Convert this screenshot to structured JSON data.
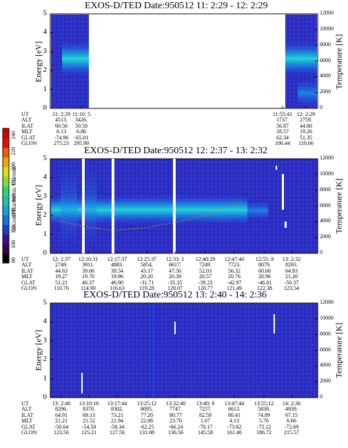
{
  "colorbar": {
    "label": "Second Harmonic Current",
    "ticks": [
      "240",
      "220",
      "200",
      "180",
      "160",
      "140",
      "120",
      "100",
      "80"
    ],
    "colors": [
      "#000000",
      "#3a004f",
      "#3b0d8a",
      "#1d3fd1",
      "#0a77e6",
      "#06a9d8",
      "#11c9a6",
      "#2fd86a",
      "#7ee12b",
      "#d7e016",
      "#f6a20e",
      "#f05a08",
      "#e10f05",
      "#d40000"
    ]
  },
  "chart_data": [
    {
      "type": "heatmap",
      "title": "EXOS-D/TED   Date:950512  11: 2:29 - 12: 2:29",
      "ylabel": "Energy [eV]",
      "y2label": "Temperature [K]",
      "ylim": [
        0,
        5
      ],
      "y2lim": [
        0,
        12000
      ],
      "yticks": [
        "0",
        "1",
        "2",
        "3",
        "4",
        "5"
      ],
      "y2ticks": [
        "0",
        "2000",
        "4000",
        "6000",
        "8000",
        "10000",
        "12000"
      ],
      "data_gap": [
        "11:10: 5",
        "11:55:41"
      ],
      "ephemeris": {
        "labels": [
          "UT",
          "ALT",
          "ILAT",
          "MLT",
          "GLAT",
          "GLON"
        ],
        "columns": [
          {
            "ut": "11: 2:29",
            "alt": "4513.",
            "ilat": "60.56",
            "mlt": "6.13",
            "glat": "-74.96",
            "glon": "275.23"
          },
          {
            "ut": "11:10: 5",
            "alt": "3426.",
            "ilat": "50.50",
            "mlt": "6.86",
            "glat": "-65.01",
            "glon": "295.99"
          },
          {
            "ut": "11:55:41",
            "alt": "1737.",
            "ilat": "56.87",
            "mlt": "18.57",
            "glat": "62.34",
            "glon": "100.44"
          },
          {
            "ut": "12: 2:29",
            "alt": "2759.",
            "ilat": "44.80",
            "mlt": "19.26",
            "glat": "51.35",
            "glon": "110.66"
          }
        ]
      }
    },
    {
      "type": "heatmap",
      "title": "EXOS-D/TED   Date:950512  12: 2:37 - 13: 2:32",
      "ylabel": "Energy [eV]",
      "y2label": "Temperature [K]",
      "ylim": [
        0,
        5
      ],
      "y2lim": [
        0,
        12000
      ],
      "yticks": [
        "0",
        "1",
        "2",
        "3",
        "4",
        "5"
      ],
      "y2ticks": [
        "0",
        "2000",
        "4000",
        "6000",
        "8000",
        "10000",
        "12000"
      ],
      "ephemeris": {
        "labels": [
          "UT",
          "ALT",
          "ILAT",
          "MLT",
          "GLAT",
          "GLON"
        ],
        "columns": [
          {
            "ut": "12: 2:37",
            "alt": "2749.",
            "ilat": "44.63",
            "mlt": "19.27",
            "glat": "51.21",
            "glon": "110.76"
          },
          {
            "ut": "12:10:31",
            "alt": "3911.",
            "ilat": "39.00",
            "mlt": "19.70",
            "glat": "46.37",
            "glon": "114.90"
          },
          {
            "ut": "12:17:37",
            "alt": "4883.",
            "ilat": "39.54",
            "mlt": "19.96",
            "glat": "46.90",
            "glon": "116.63"
          },
          {
            "ut": "12:25:37",
            "alt": "5854.",
            "ilat": "43.17",
            "mlt": "20.20",
            "glat": "-31.71",
            "glon": "119.28"
          },
          {
            "ut": "12:33: 1",
            "alt": "6617.",
            "ilat": "47.50",
            "mlt": "20.39",
            "glat": "-35.35",
            "glon": "120.07"
          },
          {
            "ut": "12:40:29",
            "alt": "7249.",
            "ilat": "52.03",
            "mlt": "20.57",
            "glat": "-39.23",
            "glon": "120.77"
          },
          {
            "ut": "12:47:40",
            "alt": "7723.",
            "ilat": "56.32",
            "mlt": "20.76",
            "glat": "-42.97",
            "glon": "121.49"
          },
          {
            "ut": "12:55: 8",
            "alt": "8079.",
            "ilat": "60.66",
            "mlt": "20.96",
            "glat": "-46.81",
            "glon": "122.38"
          },
          {
            "ut": "13: 2:32",
            "alt": "8293.",
            "ilat": "64.83",
            "mlt": "21.20",
            "glat": "-50.37",
            "glon": "123.54"
          }
        ]
      }
    },
    {
      "type": "heatmap",
      "title": "EXOS-D/TED   Date:950512  13: 2:40 - 14: 2:36",
      "ylabel": "Energy [eV]",
      "y2label": "Temperature [K]",
      "ylim": [
        0,
        5
      ],
      "y2lim": [
        0,
        12000
      ],
      "yticks": [
        "0",
        "1",
        "2",
        "3",
        "4",
        "5"
      ],
      "y2ticks": [
        "0",
        "2000",
        "4000",
        "6000",
        "8000",
        "10000",
        "12000"
      ],
      "ephemeris": {
        "labels": [
          "UT",
          "ALT",
          "ILAT",
          "MLT",
          "GLAT",
          "GLON"
        ],
        "columns": [
          {
            "ut": "13: 2:40",
            "alt": "8296.",
            "ilat": "64.91",
            "mlt": "21.21",
            "glat": "-50.64",
            "glon": "123.56"
          },
          {
            "ut": "13:10:16",
            "alt": "8370.",
            "ilat": "69.13",
            "mlt": "21.52",
            "glat": "-54.50",
            "glon": "125.21"
          },
          {
            "ut": "13:17:44",
            "alt": "8302.",
            "ilat": "73.21",
            "mlt": "21.94",
            "glat": "-58.34",
            "glon": "127.56"
          },
          {
            "ut": "13:25:12",
            "alt": "8095.",
            "ilat": "77.20",
            "mlt": "22.88",
            "glat": "-62.25",
            "glon": "131.08"
          },
          {
            "ut": "13:32:40",
            "alt": "7747.",
            "ilat": "80.77",
            "mlt": "23.70",
            "glat": "-66.24",
            "glon": "136.56"
          },
          {
            "ut": "13:40: 8",
            "alt": "7257.",
            "ilat": "82.59",
            "mlt": "1.67",
            "glat": "-70.17",
            "glon": "145.58"
          },
          {
            "ut": "13:47:44",
            "alt": "6613.",
            "ilat": "80.41",
            "mlt": "4.13",
            "glat": "-73.62",
            "glon": "161.46"
          },
          {
            "ut": "13:55:12",
            "alt": "5839.",
            "ilat": "74.89",
            "mlt": "5.76",
            "glat": "-75.12",
            "glon": "186.72"
          },
          {
            "ut": "14: 2:36",
            "alt": "4939.",
            "ilat": "67.15",
            "mlt": "6.66",
            "glat": "-72.69",
            "glon": "215.57"
          }
        ]
      }
    }
  ]
}
